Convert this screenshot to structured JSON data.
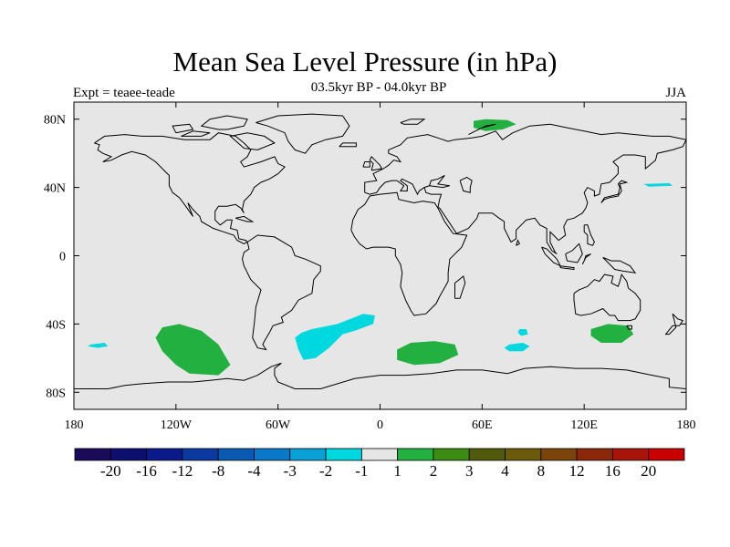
{
  "title": "Mean Sea Level Pressure (in hPa)",
  "subtitle": "03.5kyr BP - 04.0kyr BP",
  "left_label": "Expt = teaee-teade",
  "right_label": "JJA",
  "axes": {
    "lon_ticks": [
      {
        "value": -180,
        "label": "180"
      },
      {
        "value": -120,
        "label": "120W"
      },
      {
        "value": -60,
        "label": "60W"
      },
      {
        "value": 0,
        "label": "0"
      },
      {
        "value": 60,
        "label": "60E"
      },
      {
        "value": 120,
        "label": "120E"
      },
      {
        "value": 180,
        "label": "180"
      }
    ],
    "lat_ticks": [
      {
        "value": 80,
        "label": "80N"
      },
      {
        "value": 40,
        "label": "40N"
      },
      {
        "value": 0,
        "label": "0"
      },
      {
        "value": -40,
        "label": "40S"
      },
      {
        "value": -80,
        "label": "80S"
      }
    ],
    "lon_range": [
      -180,
      180
    ],
    "lat_range": [
      -90,
      90
    ]
  },
  "colorbar": {
    "colors": [
      "#1a0a5a",
      "#0e0e6e",
      "#0a1a8a",
      "#0a3aa0",
      "#0a5ab4",
      "#0a78c8",
      "#0aa0d8",
      "#00d8e0",
      "#e6e6e6",
      "#22b040",
      "#3c8c14",
      "#505a0a",
      "#6a5a0a",
      "#7a440a",
      "#8c280a",
      "#a8140a",
      "#c80000"
    ],
    "labels": [
      "-20",
      "-16",
      "-12",
      "-8",
      "-4",
      "-3",
      "-2",
      "-1",
      "1",
      "2",
      "3",
      "4",
      "8",
      "12",
      "16",
      "20"
    ]
  },
  "colors": {
    "background": "#e6e6e6",
    "positive_1_2": "#22b040",
    "negative_1_2": "#00d8e0",
    "coastline": "#000000"
  },
  "anomaly_regions": [
    {
      "sign": "positive",
      "level": "1 to 2",
      "region": "northern Russia / Kara Sea",
      "lonlat": [
        [
          55,
          79
        ],
        [
          62,
          80
        ],
        [
          75,
          79.5
        ],
        [
          80,
          77
        ],
        [
          72,
          74
        ],
        [
          62,
          73
        ],
        [
          55,
          75
        ]
      ]
    },
    {
      "sign": "positive",
      "level": "1 to 2",
      "region": "South Pacific",
      "lonlat": [
        [
          -128,
          -42
        ],
        [
          -118,
          -40
        ],
        [
          -105,
          -44
        ],
        [
          -95,
          -52
        ],
        [
          -88,
          -64
        ],
        [
          -95,
          -70
        ],
        [
          -112,
          -69
        ],
        [
          -120,
          -64
        ],
        [
          -128,
          -56
        ],
        [
          -132,
          -48
        ]
      ]
    },
    {
      "sign": "positive",
      "level": "1 to 2",
      "region": "South Atlantic / Indian",
      "lonlat": [
        [
          10,
          -55
        ],
        [
          18,
          -51
        ],
        [
          32,
          -50
        ],
        [
          44,
          -52
        ],
        [
          46,
          -58
        ],
        [
          35,
          -63
        ],
        [
          20,
          -64
        ],
        [
          10,
          -61
        ]
      ]
    },
    {
      "sign": "positive",
      "level": "1 to 2",
      "region": "south of Australia",
      "lonlat": [
        [
          124,
          -43
        ],
        [
          134,
          -40
        ],
        [
          146,
          -41
        ],
        [
          149,
          -46
        ],
        [
          142,
          -51
        ],
        [
          130,
          -51
        ],
        [
          124,
          -47
        ]
      ]
    },
    {
      "sign": "negative",
      "level": "-2 to -1",
      "region": "South Atlantic",
      "lonlat": [
        [
          -40,
          -43
        ],
        [
          -25,
          -40
        ],
        [
          -10,
          -34
        ],
        [
          -3,
          -35
        ],
        [
          -4,
          -40
        ],
        [
          -15,
          -44
        ],
        [
          -22,
          -46
        ],
        [
          -30,
          -54
        ],
        [
          -38,
          -60
        ],
        [
          -45,
          -61
        ],
        [
          -48,
          -55
        ],
        [
          -50,
          -48
        ],
        [
          -46,
          -45
        ]
      ]
    },
    {
      "sign": "negative",
      "level": "-2 to -1",
      "region": "southern Indian Ocean",
      "lonlat": [
        [
          76,
          -52
        ],
        [
          84,
          -51
        ],
        [
          88,
          -53
        ],
        [
          84,
          -56
        ],
        [
          76,
          -56
        ],
        [
          73,
          -54
        ]
      ]
    },
    {
      "sign": "negative",
      "level": "-2 to -1",
      "region": "southern Indian Ocean small",
      "lonlat": [
        [
          82,
          -43
        ],
        [
          86,
          -43
        ],
        [
          87,
          -46
        ],
        [
          83,
          -47
        ],
        [
          81,
          -45
        ]
      ]
    },
    {
      "sign": "negative",
      "level": "-2 to -1",
      "region": "South Pacific small",
      "lonlat": [
        [
          -170,
          -52
        ],
        [
          -162,
          -51
        ],
        [
          -160,
          -53
        ],
        [
          -166,
          -54
        ],
        [
          -172,
          -53
        ]
      ]
    },
    {
      "sign": "negative",
      "level": "-2 to -1",
      "region": "North Pacific small",
      "lonlat": [
        [
          155,
          42
        ],
        [
          170,
          42.5
        ],
        [
          172,
          41
        ],
        [
          158,
          40.5
        ]
      ]
    }
  ]
}
